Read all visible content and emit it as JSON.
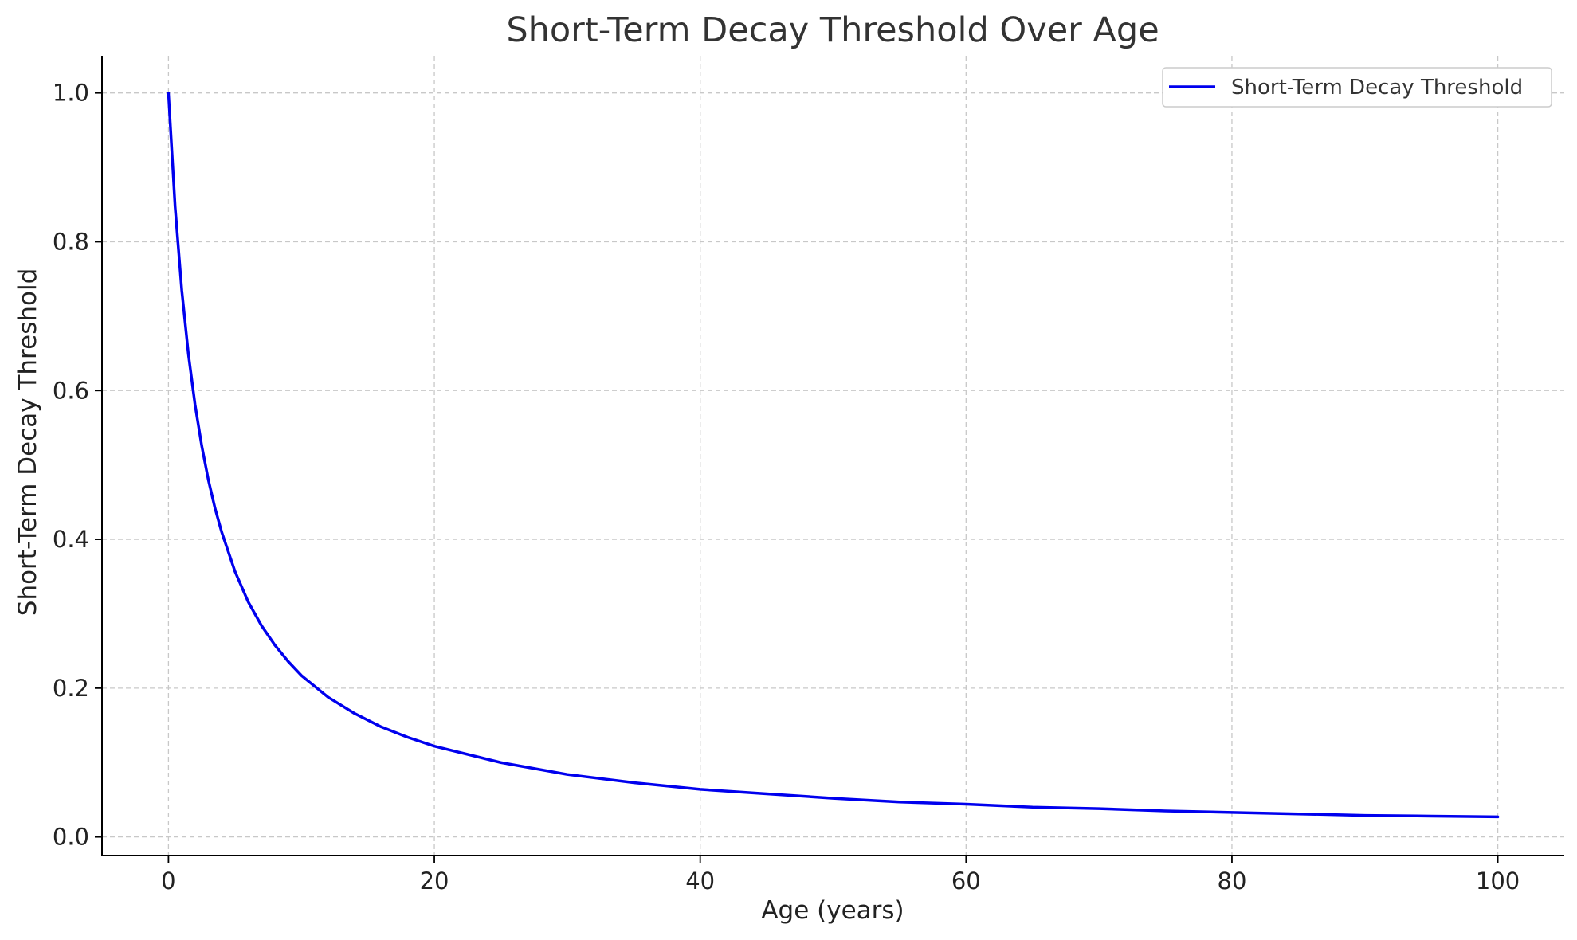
{
  "chart_data": {
    "type": "line",
    "title": "Short-Term Decay Threshold Over Age",
    "xlabel": "Age (years)",
    "ylabel": "Short-Term Decay Threshold",
    "xlim": [
      -5,
      105
    ],
    "ylim": [
      -0.025,
      1.05
    ],
    "xticks": [
      0,
      20,
      40,
      60,
      80,
      100
    ],
    "xtick_labels": [
      "0",
      "20",
      "40",
      "60",
      "80",
      "100"
    ],
    "yticks": [
      0.0,
      0.2,
      0.4,
      0.6,
      0.8,
      1.0
    ],
    "ytick_labels": [
      "0.0",
      "0.2",
      "0.4",
      "0.6",
      "0.8",
      "1.0"
    ],
    "grid": true,
    "legend_position": "top-right",
    "series": [
      {
        "name": "Short-Term Decay Threshold",
        "color": "#0000ee",
        "x": [
          0,
          0.5,
          1,
          1.5,
          2,
          2.5,
          3,
          3.5,
          4,
          5,
          6,
          7,
          8,
          9,
          10,
          12,
          14,
          16,
          18,
          20,
          25,
          30,
          35,
          40,
          45,
          50,
          55,
          60,
          65,
          70,
          75,
          80,
          85,
          90,
          95,
          100
        ],
        "y": [
          1.0,
          0.847,
          0.735,
          0.649,
          0.581,
          0.526,
          0.48,
          0.442,
          0.41,
          0.357,
          0.316,
          0.284,
          0.258,
          0.236,
          0.217,
          0.188,
          0.166,
          0.148,
          0.134,
          0.122,
          0.1,
          0.084,
          0.073,
          0.064,
          0.058,
          0.052,
          0.047,
          0.044,
          0.04,
          0.038,
          0.035,
          0.033,
          0.031,
          0.029,
          0.028,
          0.027
        ]
      }
    ]
  }
}
